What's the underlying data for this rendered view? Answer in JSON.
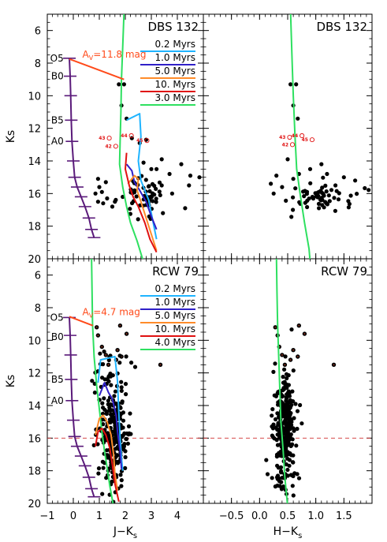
{
  "chart_data": [
    {
      "type": "scatter",
      "panel": "top-left",
      "title": "DBS 132",
      "xlabel": "",
      "ylabel": "Ks",
      "xlim": [
        -1,
        5
      ],
      "ylim": [
        20,
        5
      ],
      "xticks": [],
      "yticks": [
        6,
        8,
        10,
        12,
        14,
        16,
        18,
        20
      ],
      "extinction_label": "AV=11.8 mag",
      "extinction_label_parts": {
        "a": "A",
        "sub": "V",
        "rest": "=11.8 mag"
      },
      "extinction_vector": [
        [
          -0.15,
          7.75
        ],
        [
          1.95,
          9.0
        ]
      ],
      "legend": [
        {
          "name": "0.2 Myrs",
          "color": "#1fb4ff"
        },
        {
          "name": "1.0 Myrs",
          "color": "#3020c8"
        },
        {
          "name": "5.0 Myrs",
          "color": "#ff8c2a"
        },
        {
          "name": "10. Myrs",
          "color": "#e01010"
        },
        {
          "name": "3.0 Myrs",
          "color": "#2ee060"
        }
      ],
      "spectral_labels": [
        {
          "text": "O5",
          "ks": 7.7
        },
        {
          "text": "B0",
          "ks": 8.8
        },
        {
          "text": "B5",
          "ks": 11.5
        },
        {
          "text": "A0",
          "ks": 12.8
        }
      ],
      "circled_labels": [
        {
          "text": "43",
          "x": 1.2,
          "y": 12.6
        },
        {
          "text": "44",
          "x": 2.05,
          "y": 12.45
        },
        {
          "text": "42",
          "x": 1.45,
          "y": 13.1
        },
        {
          "text": "45",
          "x": 2.65,
          "y": 12.75
        }
      ]
    },
    {
      "type": "scatter",
      "panel": "top-right",
      "title": "DBS 132",
      "xlabel": "",
      "ylabel": "",
      "xlim": [
        -1,
        2
      ],
      "ylim": [
        20,
        5
      ],
      "circled_labels": [
        {
          "text": "43",
          "x": 0.45,
          "y": 12.55
        },
        {
          "text": "44",
          "x": 0.67,
          "y": 12.45
        },
        {
          "text": "42",
          "x": 0.5,
          "y": 13.0
        },
        {
          "text": "45",
          "x": 0.85,
          "y": 12.7
        }
      ]
    },
    {
      "type": "scatter",
      "panel": "bottom-left",
      "title": "RCW 79",
      "xlabel": "J−Ks",
      "ylabel": "Ks",
      "xlim": [
        -1,
        5
      ],
      "ylim": [
        20,
        5
      ],
      "xticks": [
        -1,
        0,
        1,
        2,
        3,
        4
      ],
      "yticks": [
        6,
        8,
        10,
        12,
        14,
        16,
        18,
        20
      ],
      "extinction_label": "AV=4.7 mag",
      "extinction_label_parts": {
        "a": "A",
        "sub": "V",
        "rest": "=4.7 mag"
      },
      "extinction_vector": [
        [
          -0.15,
          8.55
        ],
        [
          0.75,
          9.1
        ]
      ],
      "legend": [
        {
          "name": "0.2 Myrs",
          "color": "#1fb4ff"
        },
        {
          "name": "1.0 Myrs",
          "color": "#3020c8"
        },
        {
          "name": "5.0 Myrs",
          "color": "#ff8c2a"
        },
        {
          "name": "10. Myrs",
          "color": "#e01010"
        },
        {
          "name": "4.0 Myrs",
          "color": "#2ee060"
        }
      ],
      "spectral_labels": [
        {
          "text": "O5",
          "ks": 8.6
        },
        {
          "text": "B0",
          "ks": 9.8
        },
        {
          "text": "B5",
          "ks": 12.4
        },
        {
          "text": "A0",
          "ks": 13.7
        }
      ],
      "limit_line_ks": 16
    },
    {
      "type": "scatter",
      "panel": "bottom-right",
      "title": "RCW 79",
      "xlabel": "H−Ks",
      "ylabel": "",
      "xlim": [
        -1,
        2
      ],
      "ylim": [
        20,
        5
      ],
      "xticks": [
        -0.5,
        0.0,
        0.5,
        1.0,
        1.5
      ],
      "limit_line_ks": 16
    }
  ]
}
